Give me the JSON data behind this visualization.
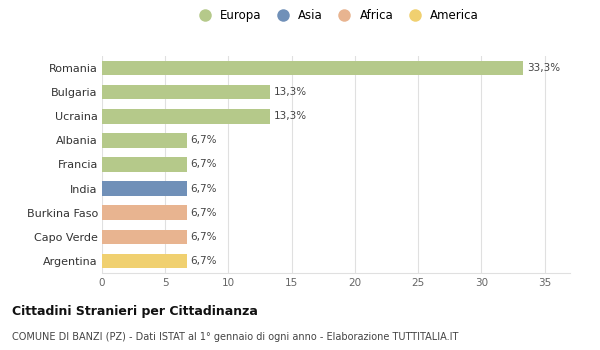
{
  "countries": [
    "Romania",
    "Bulgaria",
    "Ucraina",
    "Albania",
    "Francia",
    "India",
    "Burkina Faso",
    "Capo Verde",
    "Argentina"
  ],
  "values": [
    33.3,
    13.3,
    13.3,
    6.7,
    6.7,
    6.7,
    6.7,
    6.7,
    6.7
  ],
  "labels": [
    "33,3%",
    "13,3%",
    "13,3%",
    "6,7%",
    "6,7%",
    "6,7%",
    "6,7%",
    "6,7%",
    "6,7%"
  ],
  "colors": [
    "#b5c98a",
    "#b5c98a",
    "#b5c98a",
    "#b5c98a",
    "#b5c98a",
    "#7090b8",
    "#e8b490",
    "#e8b490",
    "#f0d070"
  ],
  "legend": [
    {
      "label": "Europa",
      "color": "#b5c98a"
    },
    {
      "label": "Asia",
      "color": "#7090b8"
    },
    {
      "label": "Africa",
      "color": "#e8b490"
    },
    {
      "label": "America",
      "color": "#f0d070"
    }
  ],
  "xlim": [
    0,
    37
  ],
  "xticks": [
    0,
    5,
    10,
    15,
    20,
    25,
    30,
    35
  ],
  "title": "Cittadini Stranieri per Cittadinanza",
  "subtitle": "COMUNE DI BANZI (PZ) - Dati ISTAT al 1° gennaio di ogni anno - Elaborazione TUTTITALIA.IT",
  "bg_color": "#ffffff",
  "grid_color": "#e0e0e0",
  "bar_height": 0.6
}
